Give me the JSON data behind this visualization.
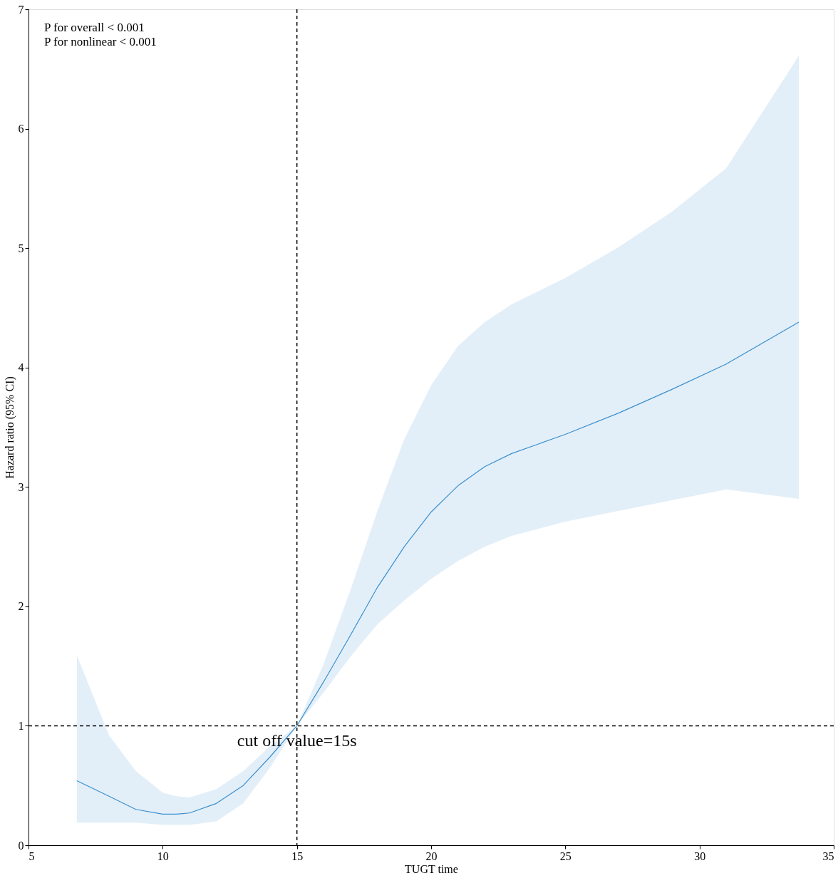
{
  "chart_data": {
    "type": "line",
    "xlabel": "TUGT  time",
    "ylabel": "Hazard ratio (95% CI)",
    "xlim": [
      5,
      35
    ],
    "xticks": [
      5,
      10,
      15,
      20,
      25,
      30,
      35
    ],
    "ylim": [
      0,
      7
    ],
    "yticks": [
      0,
      1,
      2,
      3,
      4,
      5,
      6,
      7
    ],
    "grid": false,
    "legend": false,
    "series": [
      {
        "color": "#3a8fcf",
        "x": [
          6.8,
          8,
          9,
          10,
          10.5,
          11,
          12,
          13,
          14,
          15,
          16,
          17,
          18,
          19,
          20,
          21,
          22,
          23,
          24,
          25,
          27,
          29,
          31,
          33.7
        ],
        "values": [
          0.54,
          0.41,
          0.3,
          0.26,
          0.26,
          0.27,
          0.35,
          0.5,
          0.74,
          1.0,
          1.37,
          1.76,
          2.16,
          2.5,
          2.79,
          3.01,
          3.17,
          3.28,
          3.36,
          3.44,
          3.62,
          3.82,
          4.03,
          4.38
        ],
        "upper": [
          1.59,
          0.92,
          0.62,
          0.44,
          0.41,
          0.4,
          0.47,
          0.62,
          0.83,
          1.0,
          1.52,
          2.14,
          2.8,
          3.4,
          3.85,
          4.18,
          4.38,
          4.53,
          4.64,
          4.75,
          5.01,
          5.31,
          5.67,
          6.61
        ],
        "lower": [
          0.19,
          0.19,
          0.19,
          0.17,
          0.17,
          0.17,
          0.2,
          0.35,
          0.65,
          1.0,
          1.28,
          1.58,
          1.85,
          2.05,
          2.23,
          2.38,
          2.5,
          2.59,
          2.65,
          2.71,
          2.8,
          2.89,
          2.98,
          2.9
        ]
      }
    ],
    "ref_lines": [
      {
        "axis": "x",
        "value": 15,
        "color": "#000000",
        "line_style": "dashed"
      },
      {
        "axis": "y",
        "value": 1,
        "color": "#000000",
        "line_style": "dashed"
      }
    ],
    "annotations": [
      "P for overall < 0.001",
      "P for nonlinear < 0.001",
      {
        "text": "cut off value=15s",
        "x": 15,
        "y": 0.8
      }
    ]
  }
}
